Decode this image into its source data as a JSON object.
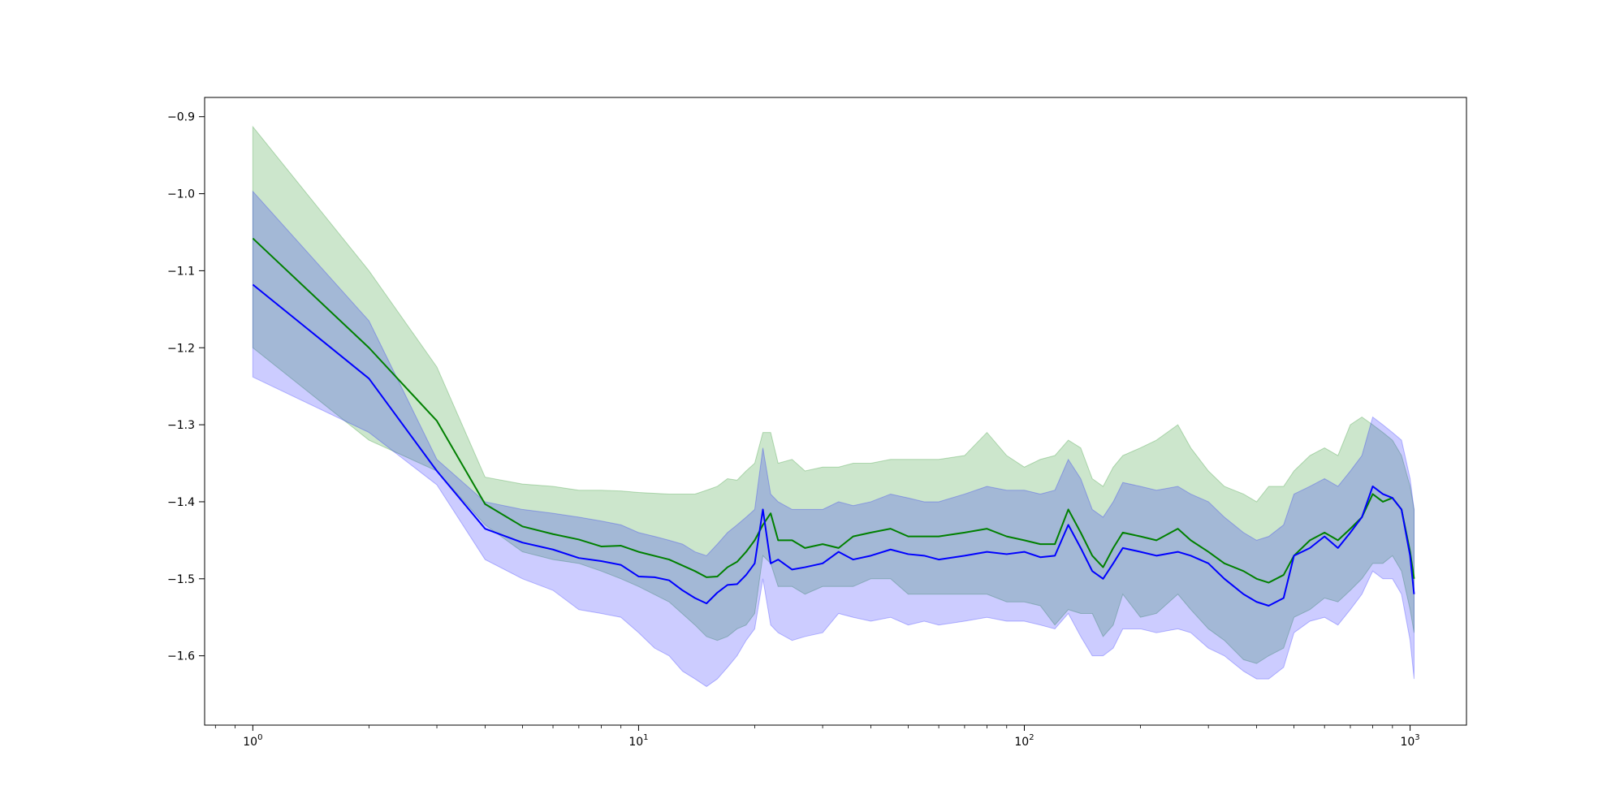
{
  "chart_data": {
    "type": "line",
    "title": "",
    "xlabel": "",
    "ylabel": "",
    "xscale": "log",
    "xlim": [
      0.75,
      1400
    ],
    "ylim": [
      -1.69,
      -0.875
    ],
    "grid": false,
    "legend": "none",
    "x_ticks": [
      {
        "base": "10",
        "exp": "0",
        "value": 1
      },
      {
        "base": "10",
        "exp": "1",
        "value": 10
      },
      {
        "base": "10",
        "exp": "2",
        "value": 100
      },
      {
        "base": "10",
        "exp": "3",
        "value": 1000
      }
    ],
    "y_ticks": [
      {
        "value": -0.9,
        "label": "−0.9"
      },
      {
        "value": -1.0,
        "label": "−1.0"
      },
      {
        "value": -1.1,
        "label": "−1.1"
      },
      {
        "value": -1.2,
        "label": "−1.2"
      },
      {
        "value": -1.3,
        "label": "−1.3"
      },
      {
        "value": -1.4,
        "label": "−1.4"
      },
      {
        "value": -1.5,
        "label": "−1.5"
      },
      {
        "value": -1.6,
        "label": "−1.6"
      }
    ],
    "series": [
      {
        "color": "#008000",
        "band_color": "#008000",
        "band_opacity": 0.2,
        "x": [
          1,
          2,
          3,
          4,
          5,
          6,
          7,
          8,
          9,
          10,
          12,
          14,
          15,
          16,
          17,
          18,
          19,
          20,
          21,
          22,
          23,
          25,
          27,
          30,
          33,
          36,
          40,
          45,
          50,
          55,
          60,
          70,
          80,
          90,
          100,
          110,
          120,
          130,
          140,
          150,
          160,
          170,
          180,
          200,
          220,
          250,
          270,
          300,
          330,
          370,
          400,
          430,
          470,
          500,
          550,
          600,
          650,
          700,
          750,
          800,
          850,
          900,
          950,
          1000,
          1024
        ],
        "y": [
          -1.058,
          -1.2,
          -1.295,
          -1.403,
          -1.432,
          -1.442,
          -1.449,
          -1.458,
          -1.457,
          -1.465,
          -1.475,
          -1.49,
          -1.498,
          -1.497,
          -1.485,
          -1.478,
          -1.465,
          -1.45,
          -1.43,
          -1.415,
          -1.45,
          -1.45,
          -1.46,
          -1.455,
          -1.46,
          -1.445,
          -1.44,
          -1.435,
          -1.445,
          -1.445,
          -1.445,
          -1.44,
          -1.435,
          -1.445,
          -1.45,
          -1.455,
          -1.455,
          -1.41,
          -1.44,
          -1.47,
          -1.485,
          -1.46,
          -1.44,
          -1.445,
          -1.45,
          -1.435,
          -1.45,
          -1.465,
          -1.48,
          -1.49,
          -1.5,
          -1.505,
          -1.495,
          -1.47,
          -1.45,
          -1.44,
          -1.45,
          -1.435,
          -1.42,
          -1.39,
          -1.4,
          -1.395,
          -1.41,
          -1.465,
          -1.5
        ],
        "lower": [
          -1.2,
          -1.32,
          -1.36,
          -1.43,
          -1.465,
          -1.475,
          -1.48,
          -1.49,
          -1.5,
          -1.51,
          -1.53,
          -1.56,
          -1.575,
          -1.58,
          -1.575,
          -1.565,
          -1.56,
          -1.545,
          -1.47,
          -1.48,
          -1.51,
          -1.51,
          -1.52,
          -1.51,
          -1.51,
          -1.51,
          -1.5,
          -1.5,
          -1.52,
          -1.52,
          -1.52,
          -1.52,
          -1.52,
          -1.53,
          -1.53,
          -1.535,
          -1.56,
          -1.54,
          -1.545,
          -1.545,
          -1.575,
          -1.56,
          -1.52,
          -1.55,
          -1.545,
          -1.52,
          -1.54,
          -1.565,
          -1.58,
          -1.605,
          -1.61,
          -1.6,
          -1.59,
          -1.55,
          -1.54,
          -1.525,
          -1.53,
          -1.515,
          -1.5,
          -1.48,
          -1.48,
          -1.47,
          -1.49,
          -1.54,
          -1.57
        ],
        "upper": [
          -0.913,
          -1.1,
          -1.225,
          -1.368,
          -1.377,
          -1.38,
          -1.385,
          -1.385,
          -1.386,
          -1.388,
          -1.39,
          -1.39,
          -1.385,
          -1.38,
          -1.37,
          -1.372,
          -1.36,
          -1.35,
          -1.31,
          -1.31,
          -1.35,
          -1.345,
          -1.36,
          -1.355,
          -1.355,
          -1.35,
          -1.35,
          -1.345,
          -1.345,
          -1.345,
          -1.345,
          -1.34,
          -1.31,
          -1.34,
          -1.355,
          -1.345,
          -1.34,
          -1.32,
          -1.33,
          -1.37,
          -1.38,
          -1.355,
          -1.34,
          -1.33,
          -1.32,
          -1.3,
          -1.33,
          -1.36,
          -1.38,
          -1.39,
          -1.4,
          -1.38,
          -1.38,
          -1.36,
          -1.34,
          -1.33,
          -1.34,
          -1.3,
          -1.29,
          -1.3,
          -1.31,
          -1.32,
          -1.34,
          -1.38,
          -1.41
        ]
      },
      {
        "color": "#0000ff",
        "band_color": "#0000ff",
        "band_opacity": 0.2,
        "x": [
          1,
          2,
          3,
          4,
          5,
          6,
          7,
          8,
          9,
          10,
          11,
          12,
          13,
          14,
          15,
          16,
          17,
          18,
          19,
          20,
          21,
          22,
          23,
          25,
          27,
          30,
          33,
          36,
          40,
          45,
          50,
          55,
          60,
          70,
          80,
          90,
          100,
          110,
          120,
          130,
          140,
          150,
          160,
          170,
          180,
          200,
          220,
          250,
          270,
          300,
          330,
          370,
          400,
          430,
          470,
          500,
          550,
          600,
          650,
          700,
          750,
          800,
          850,
          900,
          950,
          1000,
          1024
        ],
        "y": [
          -1.118,
          -1.24,
          -1.36,
          -1.435,
          -1.453,
          -1.462,
          -1.473,
          -1.477,
          -1.482,
          -1.497,
          -1.498,
          -1.502,
          -1.515,
          -1.525,
          -1.532,
          -1.518,
          -1.508,
          -1.507,
          -1.495,
          -1.48,
          -1.41,
          -1.48,
          -1.475,
          -1.488,
          -1.485,
          -1.48,
          -1.465,
          -1.475,
          -1.47,
          -1.462,
          -1.468,
          -1.47,
          -1.475,
          -1.47,
          -1.465,
          -1.468,
          -1.465,
          -1.472,
          -1.47,
          -1.43,
          -1.46,
          -1.49,
          -1.5,
          -1.48,
          -1.46,
          -1.465,
          -1.47,
          -1.465,
          -1.47,
          -1.48,
          -1.5,
          -1.52,
          -1.53,
          -1.535,
          -1.525,
          -1.47,
          -1.46,
          -1.445,
          -1.46,
          -1.44,
          -1.42,
          -1.38,
          -1.39,
          -1.395,
          -1.41,
          -1.47,
          -1.52
        ],
        "lower": [
          -1.238,
          -1.31,
          -1.378,
          -1.475,
          -1.5,
          -1.515,
          -1.54,
          -1.545,
          -1.55,
          -1.57,
          -1.59,
          -1.6,
          -1.62,
          -1.63,
          -1.64,
          -1.63,
          -1.615,
          -1.6,
          -1.58,
          -1.565,
          -1.5,
          -1.56,
          -1.57,
          -1.58,
          -1.575,
          -1.57,
          -1.545,
          -1.55,
          -1.555,
          -1.55,
          -1.56,
          -1.555,
          -1.56,
          -1.555,
          -1.55,
          -1.555,
          -1.555,
          -1.56,
          -1.565,
          -1.545,
          -1.575,
          -1.6,
          -1.6,
          -1.59,
          -1.565,
          -1.565,
          -1.57,
          -1.565,
          -1.57,
          -1.59,
          -1.6,
          -1.62,
          -1.63,
          -1.63,
          -1.615,
          -1.57,
          -1.555,
          -1.55,
          -1.56,
          -1.54,
          -1.52,
          -1.49,
          -1.5,
          -1.5,
          -1.52,
          -1.58,
          -1.63
        ],
        "upper": [
          -0.997,
          -1.165,
          -1.345,
          -1.4,
          -1.41,
          -1.415,
          -1.42,
          -1.425,
          -1.43,
          -1.44,
          -1.445,
          -1.45,
          -1.455,
          -1.465,
          -1.47,
          -1.455,
          -1.44,
          -1.43,
          -1.42,
          -1.41,
          -1.33,
          -1.39,
          -1.4,
          -1.41,
          -1.41,
          -1.41,
          -1.4,
          -1.405,
          -1.4,
          -1.39,
          -1.395,
          -1.4,
          -1.4,
          -1.39,
          -1.38,
          -1.385,
          -1.385,
          -1.39,
          -1.385,
          -1.345,
          -1.37,
          -1.41,
          -1.42,
          -1.4,
          -1.375,
          -1.38,
          -1.385,
          -1.38,
          -1.39,
          -1.4,
          -1.42,
          -1.44,
          -1.45,
          -1.445,
          -1.43,
          -1.39,
          -1.38,
          -1.37,
          -1.38,
          -1.36,
          -1.34,
          -1.29,
          -1.3,
          -1.31,
          -1.32,
          -1.37,
          -1.41
        ]
      }
    ]
  }
}
